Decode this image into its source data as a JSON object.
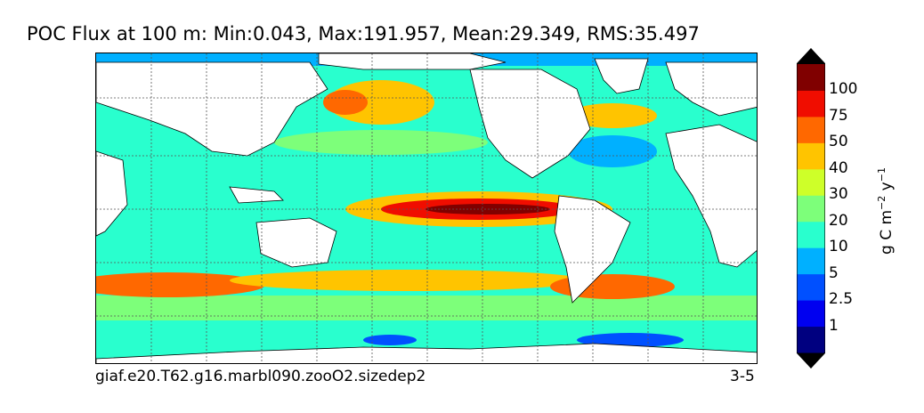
{
  "title": "POC Flux at 100 m: Min:0.043, Max:191.957, Mean:29.349, RMS:35.497",
  "case_name": "giaf.e20.T62.g16.marbl090.zooO2.sizedep2",
  "period": "3-5",
  "colorbar": {
    "units_label": "g C m",
    "units_sup1": "−2",
    "units_mid": " y",
    "units_sup2": "−1",
    "levels": [
      "1",
      "2.5",
      "5",
      "10",
      "20",
      "30",
      "40",
      "50",
      "75",
      "100"
    ],
    "colors": [
      "#000080",
      "#0000f0",
      "#0050ff",
      "#00b0ff",
      "#29ffce",
      "#7dff7a",
      "#ceff29",
      "#ffc400",
      "#ff6800",
      "#f00d00",
      "#800000"
    ],
    "extend": "both"
  }
}
